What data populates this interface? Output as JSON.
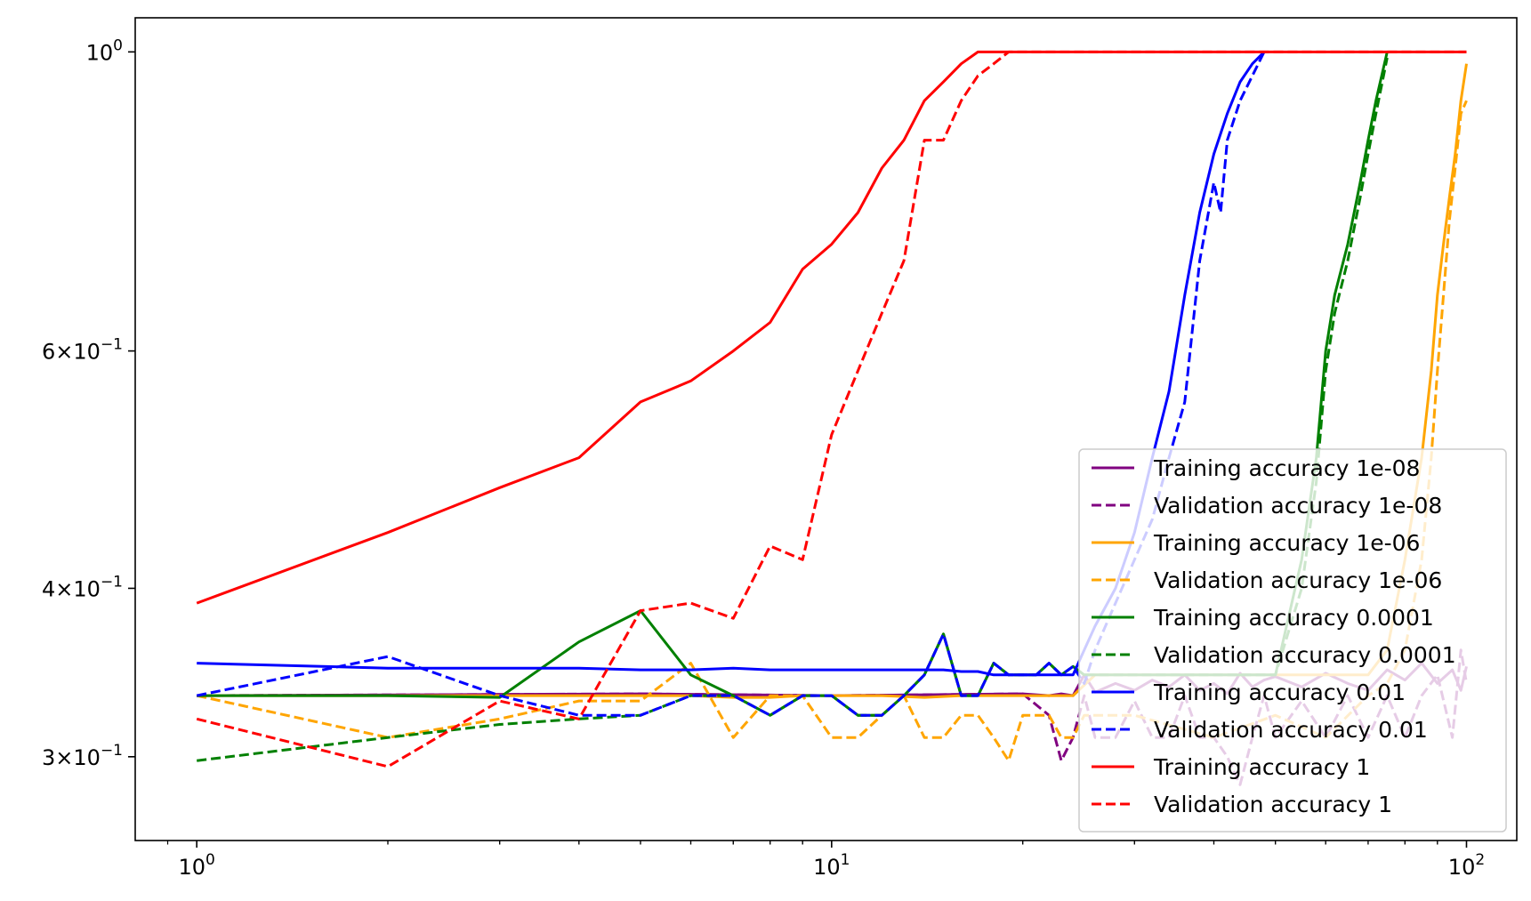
{
  "chart_data": {
    "type": "line",
    "title": "",
    "xlabel": "",
    "ylabel": "",
    "xscale": "log",
    "yscale": "log",
    "xlim": [
      0.8,
      120
    ],
    "ylim": [
      0.26,
      1.06
    ],
    "grid": false,
    "legend_position": "bottom-right",
    "x_ticks": [
      {
        "value": 1,
        "base": "10",
        "exp": "0"
      },
      {
        "value": 10,
        "base": "10",
        "exp": "1"
      },
      {
        "value": 100,
        "base": "10",
        "exp": "2"
      }
    ],
    "y_ticks": [
      {
        "value": 1.0,
        "mant": "",
        "base": "10",
        "exp": "0"
      },
      {
        "value": 0.6,
        "mant": "6×",
        "base": "10",
        "exp": "−1"
      },
      {
        "value": 0.4,
        "mant": "4×",
        "base": "10",
        "exp": "−1"
      },
      {
        "value": 0.3,
        "mant": "3×",
        "base": "10",
        "exp": "−1"
      }
    ],
    "series": [
      {
        "name": "Training accuracy 1e-08",
        "color": "#800080",
        "dash": "solid",
        "x": [
          1,
          5,
          10,
          20,
          22,
          23,
          24,
          25,
          26,
          28,
          30,
          32,
          34,
          36,
          38,
          40,
          42,
          44,
          46,
          48,
          50,
          55,
          60,
          65,
          70,
          75,
          80,
          85,
          90,
          95,
          98,
          100
        ],
        "y": [
          0.333,
          0.334,
          0.333,
          0.334,
          0.333,
          0.334,
          0.333,
          0.345,
          0.335,
          0.34,
          0.336,
          0.342,
          0.338,
          0.345,
          0.336,
          0.34,
          0.334,
          0.346,
          0.338,
          0.342,
          0.344,
          0.338,
          0.346,
          0.34,
          0.336,
          0.348,
          0.342,
          0.352,
          0.34,
          0.348,
          0.336,
          0.35
        ]
      },
      {
        "name": "Validation accuracy 1e-08",
        "color": "#800080",
        "dash": "dashed",
        "x": [
          1,
          5,
          10,
          20,
          22,
          23,
          24,
          25,
          26,
          28,
          30,
          32,
          34,
          36,
          38,
          40,
          42,
          44,
          46,
          48,
          50,
          55,
          60,
          65,
          70,
          75,
          80,
          85,
          90,
          95,
          98,
          100
        ],
        "y": [
          0.333,
          0.334,
          0.333,
          0.334,
          0.322,
          0.298,
          0.31,
          0.333,
          0.31,
          0.31,
          0.33,
          0.31,
          0.31,
          0.333,
          0.31,
          0.31,
          0.3,
          0.286,
          0.31,
          0.333,
          0.31,
          0.33,
          0.31,
          0.333,
          0.31,
          0.333,
          0.31,
          0.333,
          0.345,
          0.31,
          0.36,
          0.34
        ]
      },
      {
        "name": "Training accuracy 1e-06",
        "color": "#FFA500",
        "dash": "solid",
        "x": [
          1,
          2,
          3,
          4,
          5,
          6,
          7,
          8,
          9,
          10,
          12,
          14,
          16,
          18,
          20,
          22,
          24,
          26,
          30,
          40,
          50,
          60,
          70,
          75,
          80,
          85,
          88,
          90,
          92,
          94,
          96,
          98,
          100
        ],
        "y": [
          0.333,
          0.333,
          0.333,
          0.333,
          0.333,
          0.333,
          0.332,
          0.332,
          0.333,
          0.333,
          0.333,
          0.332,
          0.333,
          0.333,
          0.333,
          0.333,
          0.333,
          0.345,
          0.345,
          0.345,
          0.345,
          0.345,
          0.345,
          0.36,
          0.42,
          0.5,
          0.58,
          0.66,
          0.72,
          0.78,
          0.84,
          0.92,
          0.98
        ]
      },
      {
        "name": "Validation accuracy 1e-06",
        "color": "#FFA500",
        "dash": "dashed",
        "x": [
          1,
          2,
          3,
          4,
          5,
          6,
          7,
          8,
          9,
          10,
          11,
          12,
          13,
          14,
          15,
          16,
          17,
          18,
          19,
          20,
          21,
          22,
          23,
          24,
          25,
          30,
          40,
          50,
          60,
          70,
          75,
          80,
          85,
          88,
          90,
          92,
          94,
          96,
          98,
          100
        ],
        "y": [
          0.333,
          0.31,
          0.32,
          0.33,
          0.33,
          0.352,
          0.31,
          0.333,
          0.333,
          0.31,
          0.31,
          0.322,
          0.333,
          0.31,
          0.31,
          0.322,
          0.322,
          0.31,
          0.298,
          0.322,
          0.322,
          0.322,
          0.31,
          0.31,
          0.322,
          0.322,
          0.31,
          0.322,
          0.31,
          0.333,
          0.34,
          0.36,
          0.42,
          0.5,
          0.58,
          0.66,
          0.75,
          0.82,
          0.9,
          0.92
        ]
      },
      {
        "name": "Training accuracy 0.0001",
        "color": "#008000",
        "dash": "solid",
        "x": [
          1,
          2,
          3,
          4,
          5,
          6,
          7,
          8,
          9,
          10,
          11,
          12,
          13,
          14,
          15,
          16,
          17,
          18,
          19,
          20,
          21,
          22,
          23,
          24,
          25,
          30,
          40,
          50,
          55,
          58,
          60,
          62,
          65,
          68,
          70,
          72,
          75
        ],
        "y": [
          0.333,
          0.333,
          0.332,
          0.365,
          0.385,
          0.345,
          0.333,
          0.322,
          0.333,
          0.333,
          0.322,
          0.322,
          0.333,
          0.345,
          0.37,
          0.333,
          0.333,
          0.352,
          0.345,
          0.345,
          0.345,
          0.352,
          0.345,
          0.35,
          0.345,
          0.345,
          0.345,
          0.345,
          0.42,
          0.5,
          0.6,
          0.66,
          0.72,
          0.8,
          0.86,
          0.92,
          1.0
        ]
      },
      {
        "name": "Validation accuracy 0.0001",
        "color": "#008000",
        "dash": "dashed",
        "x": [
          1,
          2,
          3,
          4,
          5,
          6,
          7,
          8,
          9,
          10,
          11,
          12,
          13,
          14,
          15,
          16,
          17,
          18,
          19,
          20,
          21,
          22,
          23,
          24,
          25,
          30,
          40,
          50,
          55,
          58,
          60,
          62,
          65,
          68,
          70,
          72,
          75
        ],
        "y": [
          0.298,
          0.31,
          0.317,
          0.32,
          0.322,
          0.333,
          0.333,
          0.322,
          0.333,
          0.333,
          0.322,
          0.322,
          0.333,
          0.345,
          0.37,
          0.333,
          0.333,
          0.352,
          0.345,
          0.345,
          0.345,
          0.352,
          0.345,
          0.35,
          0.345,
          0.345,
          0.345,
          0.345,
          0.4,
          0.48,
          0.58,
          0.64,
          0.7,
          0.78,
          0.84,
          0.9,
          0.99
        ]
      },
      {
        "name": "Training accuracy 0.01",
        "color": "#0000FF",
        "dash": "solid",
        "x": [
          1,
          2,
          3,
          4,
          5,
          6,
          7,
          8,
          9,
          10,
          11,
          12,
          13,
          14,
          15,
          16,
          17,
          18,
          19,
          20,
          21,
          22,
          23,
          24,
          25,
          26,
          28,
          30,
          32,
          34,
          36,
          38,
          40,
          42,
          44,
          46,
          48
        ],
        "y": [
          0.352,
          0.349,
          0.349,
          0.349,
          0.348,
          0.348,
          0.349,
          0.348,
          0.348,
          0.348,
          0.348,
          0.348,
          0.348,
          0.348,
          0.348,
          0.347,
          0.347,
          0.345,
          0.345,
          0.345,
          0.345,
          0.345,
          0.345,
          0.345,
          0.36,
          0.375,
          0.4,
          0.44,
          0.5,
          0.56,
          0.66,
          0.76,
          0.84,
          0.9,
          0.95,
          0.98,
          1.0
        ]
      },
      {
        "name": "Validation accuracy 0.01",
        "color": "#0000FF",
        "dash": "dashed",
        "x": [
          1,
          2,
          3,
          4,
          5,
          6,
          7,
          8,
          9,
          10,
          11,
          12,
          13,
          14,
          15,
          16,
          17,
          18,
          19,
          20,
          21,
          22,
          23,
          24,
          25,
          26,
          28,
          30,
          32,
          34,
          36,
          38,
          40,
          41,
          42,
          44,
          46,
          48
        ],
        "y": [
          0.333,
          0.356,
          0.333,
          0.322,
          0.322,
          0.333,
          0.333,
          0.322,
          0.333,
          0.333,
          0.322,
          0.322,
          0.333,
          0.345,
          0.37,
          0.333,
          0.333,
          0.352,
          0.345,
          0.345,
          0.345,
          0.352,
          0.345,
          0.35,
          0.34,
          0.36,
          0.39,
          0.42,
          0.45,
          0.5,
          0.55,
          0.7,
          0.8,
          0.76,
          0.86,
          0.92,
          0.96,
          1.0
        ]
      },
      {
        "name": "Training accuracy 1",
        "color": "#FF0000",
        "dash": "solid",
        "x": [
          1,
          2,
          3,
          4,
          5,
          6,
          7,
          8,
          9,
          10,
          11,
          12,
          13,
          14,
          15,
          16,
          17,
          18,
          20,
          25,
          40,
          60,
          80,
          100
        ],
        "y": [
          0.39,
          0.44,
          0.475,
          0.5,
          0.55,
          0.57,
          0.6,
          0.63,
          0.69,
          0.72,
          0.76,
          0.82,
          0.86,
          0.92,
          0.95,
          0.98,
          1.0,
          1.0,
          1.0,
          1.0,
          1.0,
          1.0,
          1.0,
          1.0
        ]
      },
      {
        "name": "Validation accuracy 1",
        "color": "#FF0000",
        "dash": "dashed",
        "x": [
          1,
          2,
          3,
          4,
          5,
          6,
          7,
          8,
          9,
          10,
          11,
          12,
          13,
          14,
          15,
          16,
          17,
          18,
          19,
          20,
          25,
          40,
          60,
          80,
          100
        ],
        "y": [
          0.32,
          0.295,
          0.33,
          0.32,
          0.385,
          0.39,
          0.38,
          0.43,
          0.42,
          0.52,
          0.58,
          0.64,
          0.7,
          0.86,
          0.86,
          0.92,
          0.96,
          0.98,
          1.0,
          1.0,
          1.0,
          1.0,
          1.0,
          1.0,
          1.0
        ]
      }
    ]
  }
}
